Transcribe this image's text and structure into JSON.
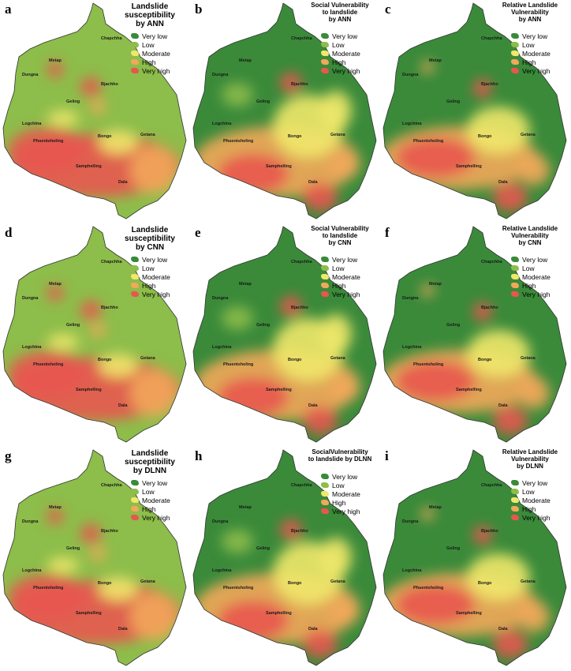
{
  "legend_labels": [
    "Very low",
    "Low",
    "Moderate",
    "High",
    "Very high"
  ],
  "legend_colors": [
    "#3a8a3a",
    "#8dbd4a",
    "#efe86a",
    "#f2a85a",
    "#e8574f"
  ],
  "places": [
    "Chapchha",
    "Metap",
    "Dungna",
    "Bjachho",
    "Geling",
    "Logchina",
    "Phuentsholing",
    "Bongo",
    "Getana",
    "Samphelling",
    "Dala"
  ],
  "panels": [
    {
      "letter": "a",
      "title": [
        "Landslide",
        "susceptibility",
        "by ANN"
      ],
      "title_size": 10,
      "scheme": "susc_ann"
    },
    {
      "letter": "b",
      "title": [
        "Social Vulnerability",
        "to landslide",
        "by ANN"
      ],
      "title_size": 8,
      "scheme": "vul_ann"
    },
    {
      "letter": "c",
      "title": [
        "Relative Landslide",
        "Vulnerability",
        "by ANN"
      ],
      "title_size": 8,
      "scheme": "rel_ann"
    },
    {
      "letter": "d",
      "title": [
        "Landslide",
        "susceptibility",
        "by CNN"
      ],
      "title_size": 10,
      "scheme": "susc_cnn"
    },
    {
      "letter": "e",
      "title": [
        "Social Vulnerability",
        "to landslide",
        "by CNN"
      ],
      "title_size": 8,
      "scheme": "vul_cnn"
    },
    {
      "letter": "f",
      "title": [
        "Relative Landslide",
        "Vulnerability",
        "by CNN"
      ],
      "title_size": 8,
      "scheme": "rel_cnn"
    },
    {
      "letter": "g",
      "title": [
        "Landslide",
        "susceptibility",
        "by DLNN"
      ],
      "title_size": 10,
      "scheme": "susc_dlnn"
    },
    {
      "letter": "h",
      "title": [
        "SocialVulnerability",
        "to landslide by DLNN"
      ],
      "title_size": 8,
      "scheme": "vul_dlnn"
    },
    {
      "letter": "i",
      "title": [
        "Relative Landslide",
        "Vulnerability",
        "by DLNN"
      ],
      "title_size": 8,
      "scheme": "rel_dlnn"
    }
  ]
}
